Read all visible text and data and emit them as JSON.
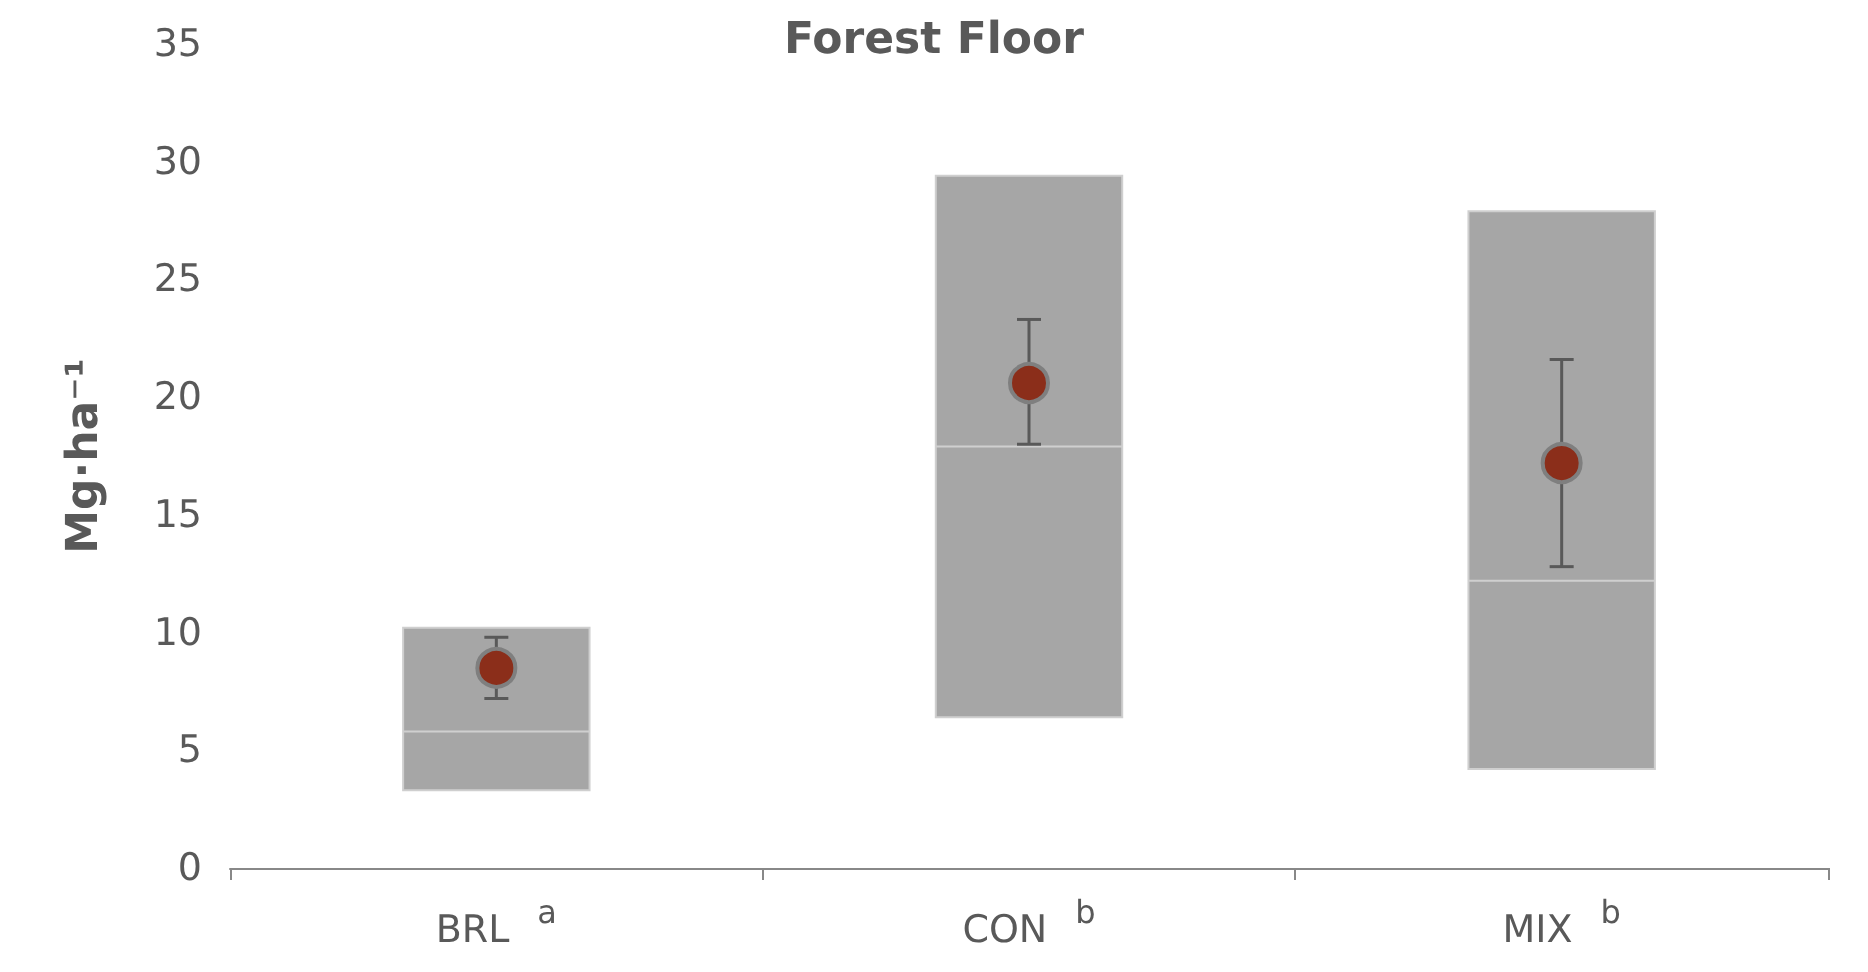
{
  "chart_data": {
    "type": "box",
    "title": "Forest Floor",
    "ylabel": "Mg·ha⁻¹",
    "categories": [
      "BRL $^{a}$",
      "CON $^{b}$",
      "MIX $^{b}$"
    ],
    "series": [
      {
        "color": "#a6a6a6",
        "boxes": [
          {
            "low": 3.3,
            "q1": 3.3,
            "median": 5.8,
            "q3": 10.2,
            "high": 10.2
          },
          {
            "low": 6.4,
            "q1": 6.4,
            "median": 17.9,
            "q3": 29.4,
            "high": 29.4
          },
          {
            "low": 4.2,
            "q1": 4.2,
            "median": 12.2,
            "q3": 27.9,
            "high": 27.9
          }
        ]
      },
      {
        "type": "scatter",
        "color": "#8b2e1a",
        "x": [
          "BRL $^{a}$",
          "CON $^{b}$",
          "MIX $^{b}$"
        ],
        "values": [
          8.5,
          20.6,
          17.2
        ],
        "errors": [
          [
            7.2,
            9.8
          ],
          [
            18.0,
            23.3
          ],
          [
            12.8,
            21.6
          ]
        ]
      }
    ],
    "ylim": [
      0,
      35
    ],
    "yticks": [
      0,
      5,
      10,
      15,
      20,
      25,
      30,
      35
    ],
    "grid": false,
    "marker": "circle"
  }
}
